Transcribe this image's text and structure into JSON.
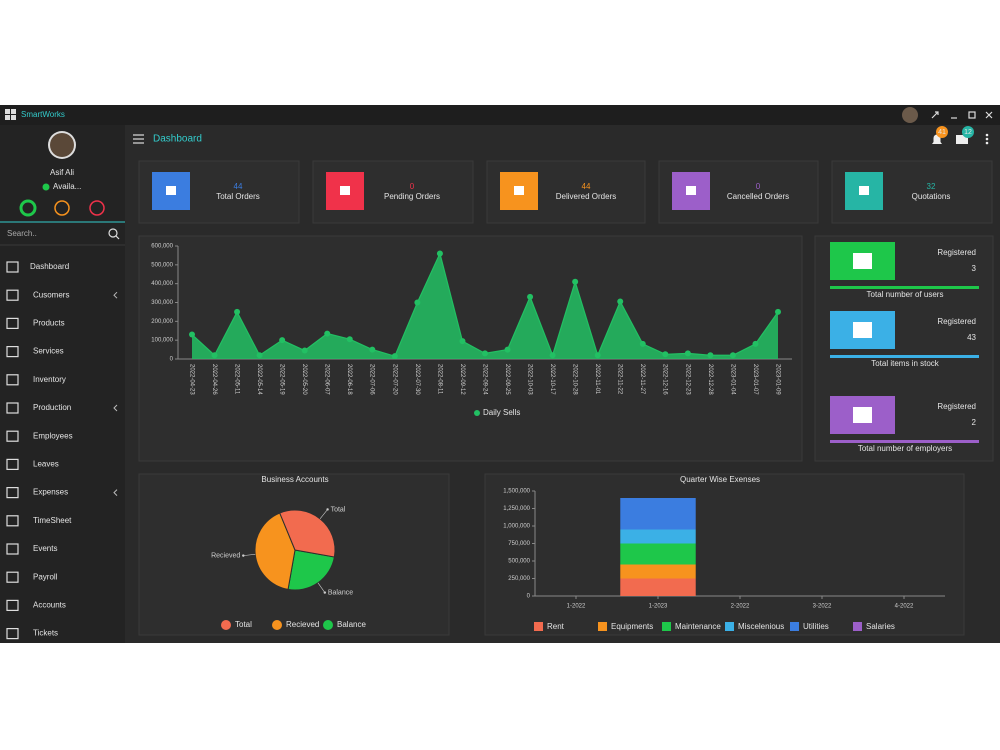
{
  "window": {
    "title": "SmartWorks"
  },
  "user": {
    "name": "Asif Ali",
    "status": "Availa..."
  },
  "search": {
    "placeholder": "Search.."
  },
  "nav": [
    "Dashboard",
    "Cusomers",
    "Products",
    "Services",
    "Inventory",
    "Production",
    "Employees",
    "Leaves",
    "Expenses",
    "TimeSheet",
    "Events",
    "Payroll",
    "Accounts",
    "Tickets"
  ],
  "header": {
    "title": "Dashboard",
    "notifications": 41,
    "messages": 12
  },
  "stats": [
    {
      "value": 44,
      "label": "Total Orders",
      "color": "#3b7de0"
    },
    {
      "value": 0,
      "label": "Pending Orders",
      "color": "#f0324a"
    },
    {
      "value": 44,
      "label": "Delivered Orders",
      "color": "#f7931e"
    },
    {
      "value": 0,
      "label": "Cancelled Orders",
      "color": "#9c5fc9"
    },
    {
      "value": 32,
      "label": "Quotations",
      "color": "#26b5a5"
    }
  ],
  "summary": [
    {
      "label": "Registered",
      "value": 3,
      "caption": "Total number of users",
      "color": "#1ec74a"
    },
    {
      "label": "Registered",
      "value": 43,
      "caption": "Total items in stock",
      "color": "#3bb0e6"
    },
    {
      "label": "Registered",
      "value": 2,
      "caption": "Total number of employers",
      "color": "#9c5fc9"
    }
  ],
  "chart_data": [
    {
      "type": "area",
      "x": [
        "2022-04-23",
        "2022-04-26",
        "2022-05-11",
        "2022-05-14",
        "2022-05-19",
        "2022-05-20",
        "2022-06-07",
        "2022-06-18",
        "2022-07-06",
        "2022-07-20",
        "2022-07-30",
        "2022-08-11",
        "2022-09-12",
        "2022-09-24",
        "2022-09-25",
        "2022-10-03",
        "2022-10-17",
        "2022-10-28",
        "2022-11-01",
        "2022-11-22",
        "2022-11-27",
        "2022-12-16",
        "2022-12-23",
        "2022-12-28",
        "2023-01-04",
        "2023-01-07",
        "2023-01-09"
      ],
      "ylim": [
        0,
        600000
      ],
      "yticks": [
        0,
        {
          "value": 100000,
          "label": "100,000"
        },
        {
          "value": 200000,
          "label": "200,000"
        },
        {
          "value": 300000,
          "label": "300,000"
        },
        {
          "value": 400000,
          "label": "400,000"
        },
        {
          "value": 500000,
          "label": "500,000"
        },
        {
          "value": 600000,
          "label": "600,000"
        }
      ],
      "legend": "bottom",
      "series": [
        {
          "name": "Daily Sells",
          "color": "#22c063",
          "values": [
            130000,
            20000,
            250000,
            20000,
            100000,
            45000,
            135000,
            105000,
            50000,
            15000,
            300000,
            560000,
            95000,
            30000,
            50000,
            330000,
            20000,
            410000,
            20000,
            305000,
            80000,
            25000,
            30000,
            20000,
            20000,
            80000,
            250000
          ]
        }
      ]
    },
    {
      "type": "pie",
      "title": "Business Accounts",
      "legend": "bottom",
      "categories": [
        "Total",
        "Recieved",
        "Balance"
      ],
      "values": [
        34,
        41,
        25
      ],
      "colors": [
        "#f26b4f",
        "#f7931e",
        "#1ec74a"
      ]
    },
    {
      "type": "stacked-bar",
      "title": "Quarter Wise Exenses",
      "legend": "bottom",
      "categories": [
        "1-2022",
        "1-2023",
        "2-2022",
        "3-2022",
        "4-2022"
      ],
      "ylim": [
        0,
        1500000
      ],
      "yticks": [
        0,
        {
          "value": 250000,
          "label": "250,000"
        },
        {
          "value": 500000,
          "label": "500,000"
        },
        {
          "value": 750000,
          "label": "750,000"
        },
        {
          "value": 1000000,
          "label": "1,000,000"
        },
        {
          "value": 1250000,
          "label": "1,250,000"
        },
        {
          "value": 1500000,
          "label": "1,500,000"
        }
      ],
      "series": [
        {
          "name": "Rent",
          "color": "#f26b4f",
          "values": [
            0,
            250000,
            0,
            0,
            0
          ]
        },
        {
          "name": "Equipments",
          "color": "#f7931e",
          "values": [
            0,
            200000,
            0,
            0,
            0
          ]
        },
        {
          "name": "Maintenance",
          "color": "#1ec74a",
          "values": [
            0,
            300000,
            0,
            0,
            0
          ]
        },
        {
          "name": "Miscelenious",
          "color": "#3bb0e6",
          "values": [
            0,
            200000,
            0,
            0,
            0
          ]
        },
        {
          "name": "Utilities",
          "color": "#3b7de0",
          "values": [
            0,
            450000,
            0,
            0,
            0
          ]
        },
        {
          "name": "Salaries",
          "color": "#9c5fc9",
          "values": [
            0,
            0,
            0,
            0,
            0
          ]
        }
      ]
    }
  ]
}
